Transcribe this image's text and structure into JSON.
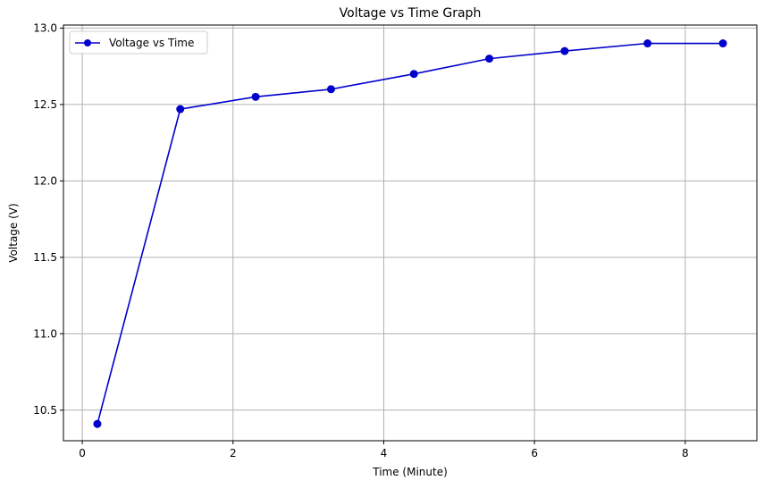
{
  "chart_data": {
    "type": "line",
    "title": "Voltage vs Time Graph",
    "xlabel": "Time (Minute)",
    "ylabel": "Voltage (V)",
    "xlim": [
      -0.25,
      8.95
    ],
    "ylim": [
      10.3,
      13.02
    ],
    "xticks": [
      0,
      2,
      4,
      6,
      8
    ],
    "xtick_labels": [
      "0",
      "2",
      "4",
      "6",
      "8"
    ],
    "yticks": [
      10.5,
      11.0,
      11.5,
      12.0,
      12.5,
      13.0
    ],
    "ytick_labels": [
      "10.5",
      "11.0",
      "11.5",
      "12.0",
      "12.5",
      "13.0"
    ],
    "grid": true,
    "legend_position": "upper-left",
    "series": [
      {
        "name": "Voltage vs Time",
        "color": "#0000cc",
        "marker": "circle",
        "x": [
          0.2,
          1.3,
          2.3,
          3.3,
          4.4,
          5.4,
          6.4,
          7.5,
          8.5
        ],
        "y": [
          10.41,
          12.47,
          12.55,
          12.6,
          12.7,
          12.8,
          12.85,
          12.9,
          12.9
        ]
      }
    ]
  }
}
